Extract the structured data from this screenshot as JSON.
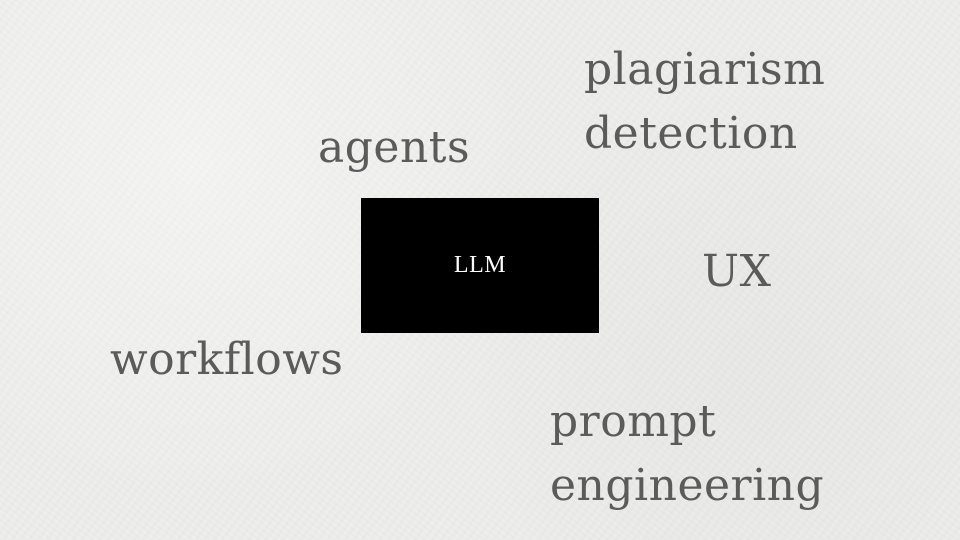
{
  "diagram": {
    "center_label": "LLM",
    "terms": {
      "agents": "agents",
      "plagiarism_detection": [
        "plagiarism",
        "detection"
      ],
      "ux": "UX",
      "workflows": "workflows",
      "prompt_engineering": [
        "prompt",
        "engineering"
      ]
    },
    "colors": {
      "background": "#eeeeed",
      "term_text": "#5b5b5b",
      "box_fill": "#000000",
      "box_text": "#ffffff"
    }
  }
}
